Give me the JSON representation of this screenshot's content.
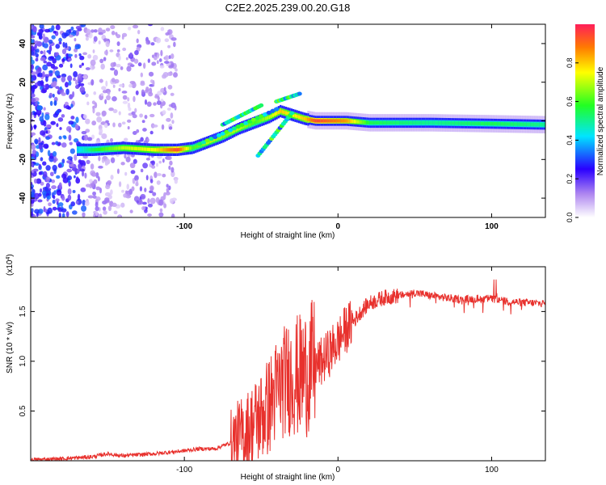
{
  "title": "C2E2.2025.239.00.20.G18",
  "chart_data": [
    {
      "type": "heatmap",
      "xlabel": "Height of straight line (km)",
      "ylabel": "Frequency (Hz)",
      "xlim": [
        -200,
        135
      ],
      "ylim": [
        -50,
        50
      ],
      "xticks": [
        -100,
        0,
        100
      ],
      "yticks": [
        -40,
        -20,
        0,
        20,
        40
      ],
      "colorbar": {
        "label": "Normalized spectral amplitude",
        "range": [
          0,
          1
        ],
        "ticks": [
          0.0,
          0.2,
          0.4,
          0.6,
          0.8
        ]
      },
      "ridge": {
        "x": [
          -170,
          -160,
          -140,
          -120,
          -105,
          -95,
          -85,
          -75,
          -65,
          -55,
          -45,
          -38,
          -30,
          -22,
          -15,
          -5,
          5,
          20,
          60,
          100,
          135
        ],
        "freq": [
          -15,
          -15,
          -14,
          -15,
          -15,
          -14,
          -11,
          -8,
          -4,
          -1,
          2,
          5,
          3,
          1,
          0,
          0,
          0,
          -1,
          -1,
          -1.5,
          -2
        ],
        "amplitude": [
          0.4,
          0.55,
          0.7,
          0.75,
          0.95,
          0.6,
          0.7,
          0.65,
          0.7,
          0.6,
          0.7,
          0.8,
          0.75,
          0.8,
          0.95,
          0.9,
          0.85,
          0.55,
          0.5,
          0.55,
          0.5
        ]
      }
    },
    {
      "type": "line",
      "xlabel": "Height of straight line (km)",
      "ylabel": "SNR (10 * v/v)",
      "yunit_label": "(x10",
      "yunit_exp": "4",
      "yunit_close": ")",
      "xlim": [
        -200,
        135
      ],
      "ylim": [
        0,
        1.95
      ],
      "xticks": [
        -100,
        0,
        100
      ],
      "yticks": [
        0.5,
        1.0,
        1.5
      ],
      "ytick_labels": [
        "0.5",
        "1.0",
        "1.5"
      ],
      "series": [
        {
          "name": "SNR",
          "color": "#e8312d",
          "x": [
            -200,
            -180,
            -160,
            -150,
            -140,
            -120,
            -100,
            -90,
            -80,
            -70,
            -60,
            -50,
            -45,
            -40,
            -35,
            -30,
            -25,
            -20,
            -15,
            -10,
            -5,
            0,
            5,
            10,
            15,
            20,
            30,
            40,
            50,
            60,
            70,
            80,
            90,
            100,
            110,
            120,
            135
          ],
          "y": [
            0.01,
            0.02,
            0.04,
            0.07,
            0.05,
            0.07,
            0.1,
            0.12,
            0.12,
            0.18,
            0.28,
            0.45,
            0.55,
            0.7,
            0.8,
            0.85,
            0.85,
            0.9,
            0.95,
            1.0,
            1.1,
            1.2,
            1.32,
            1.4,
            1.5,
            1.58,
            1.64,
            1.66,
            1.69,
            1.66,
            1.64,
            1.62,
            1.63,
            1.63,
            1.6,
            1.59,
            1.58
          ]
        }
      ]
    }
  ]
}
